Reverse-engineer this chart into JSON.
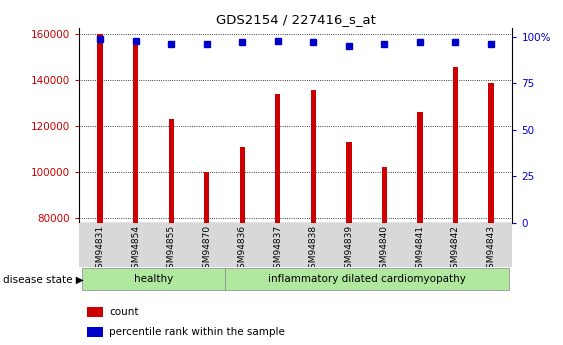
{
  "title": "GDS2154 / 227416_s_at",
  "samples": [
    "GSM94831",
    "GSM94854",
    "GSM94855",
    "GSM94870",
    "GSM94836",
    "GSM94837",
    "GSM94838",
    "GSM94839",
    "GSM94840",
    "GSM94841",
    "GSM94842",
    "GSM94843"
  ],
  "counts": [
    160000,
    157000,
    123000,
    100000,
    111000,
    134000,
    136000,
    113000,
    102000,
    126000,
    146000,
    139000
  ],
  "percentile_ranks": [
    99,
    98,
    96,
    96,
    97,
    98,
    97,
    95,
    96,
    97,
    97,
    96
  ],
  "disease_groups": [
    {
      "label": "healthy",
      "start": 0,
      "end": 3,
      "color": "#b0e8a0"
    },
    {
      "label": "inflammatory dilated cardiomyopathy",
      "start": 4,
      "end": 11,
      "color": "#b0e8a0"
    }
  ],
  "bar_color": "#CC0000",
  "dot_color": "#0000CC",
  "ylim_left": [
    78000,
    163000
  ],
  "yticks_left": [
    80000,
    100000,
    120000,
    140000,
    160000
  ],
  "ylim_right": [
    0,
    105
  ],
  "yticks_right": [
    0,
    25,
    50,
    75,
    100
  ],
  "yticklabels_right": [
    "0",
    "25",
    "50",
    "75",
    "100%"
  ],
  "bar_width": 0.15,
  "grid_color": "#555555",
  "legend_items": [
    "count",
    "percentile rank within the sample"
  ],
  "tick_label_color_left": "#CC0000",
  "tick_label_color_right": "#0000CC",
  "disease_state_label": "disease state",
  "xtick_bg": "#d8d8d8"
}
